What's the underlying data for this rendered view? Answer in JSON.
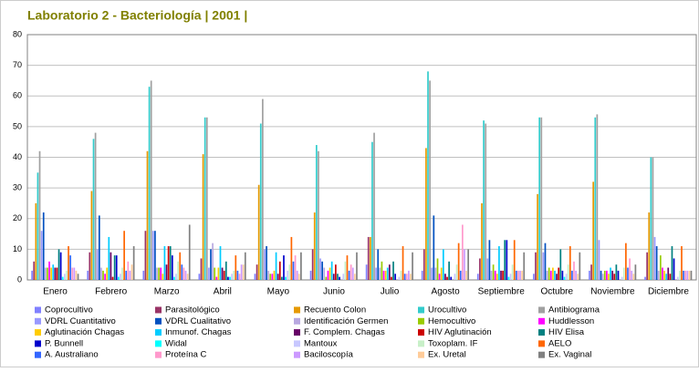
{
  "chart_data": {
    "type": "bar",
    "title": "Laboratorio 2 - Bacteriología | 2001 |",
    "categories": [
      "Enero",
      "Febrero",
      "Marzo",
      "Abril",
      "Mayo",
      "Junio",
      "Julio",
      "Agosto",
      "Septiembre",
      "Octubre",
      "Noviembre",
      "Diciembre"
    ],
    "ylim": [
      0,
      80
    ],
    "yticks": [
      0,
      10,
      20,
      30,
      40,
      50,
      60,
      70,
      80
    ],
    "grid": true,
    "series": [
      {
        "name": "Coprocultivo",
        "color": "#8080ff",
        "values": [
          3,
          3,
          3,
          2,
          2,
          3,
          5,
          3,
          2,
          2,
          3,
          1
        ]
      },
      {
        "name": "Parasitológico",
        "color": "#993366",
        "values": [
          6,
          9,
          16,
          7,
          5,
          10,
          14,
          10,
          7,
          9,
          5,
          9
        ]
      },
      {
        "name": "Recuento Colon",
        "color": "#e69900",
        "values": [
          25,
          29,
          42,
          41,
          31,
          22,
          14,
          43,
          25,
          28,
          32,
          22
        ]
      },
      {
        "name": "Urocultivo",
        "color": "#33cccc",
        "values": [
          35,
          46,
          63,
          53,
          51,
          44,
          45,
          68,
          52,
          53,
          53,
          40
        ]
      },
      {
        "name": "Antibiograma",
        "color": "#a0a0a0",
        "values": [
          42,
          48,
          65,
          53,
          59,
          42,
          48,
          65,
          51,
          53,
          54,
          40
        ]
      },
      {
        "name": "VDRL Cuantitativo",
        "color": "#9999ff",
        "values": [
          16,
          10,
          16,
          4,
          10,
          7,
          4,
          4,
          7,
          9,
          13,
          14
        ]
      },
      {
        "name": "VDRL Cualitativo",
        "color": "#0050c0",
        "values": [
          22,
          21,
          16,
          10,
          11,
          6,
          10,
          21,
          13,
          12,
          3,
          11
        ]
      },
      {
        "name": "Identificación Germen",
        "color": "#b8a8e0",
        "values": [
          4,
          4,
          4,
          12,
          3,
          4,
          4,
          4,
          3,
          3,
          2,
          3
        ]
      },
      {
        "name": "Hemocultivo",
        "color": "#99cc00",
        "values": [
          4,
          3,
          4,
          4,
          2,
          1,
          6,
          7,
          5,
          4,
          3,
          8
        ]
      },
      {
        "name": "Huddlesson",
        "color": "#ff00ff",
        "values": [
          6,
          2,
          4,
          1,
          2,
          3,
          3,
          2,
          3,
          3,
          3,
          4
        ]
      },
      {
        "name": "Aglutinación Chagas",
        "color": "#ffcc00",
        "values": [
          4,
          4,
          2,
          4,
          3,
          4,
          3,
          4,
          2,
          4,
          2,
          3
        ]
      },
      {
        "name": "Inmunof. Chagas",
        "color": "#00ccff",
        "values": [
          5,
          14,
          11,
          11,
          9,
          6,
          4,
          10,
          11,
          3,
          4,
          2
        ]
      },
      {
        "name": "F. Complem. Chagas",
        "color": "#660066",
        "values": [
          4,
          9,
          5,
          4,
          2,
          2,
          5,
          2,
          3,
          2,
          3,
          4
        ]
      },
      {
        "name": "HIV Aglutinación",
        "color": "#cc0000",
        "values": [
          4,
          1,
          11,
          3,
          6,
          5,
          1,
          1,
          3,
          4,
          2,
          2
        ]
      },
      {
        "name": "HIV Elisa",
        "color": "#008080",
        "values": [
          10,
          8,
          11,
          6,
          1,
          2,
          6,
          6,
          13,
          10,
          5,
          11
        ]
      },
      {
        "name": "P. Bunnell",
        "color": "#0000cc",
        "values": [
          9,
          8,
          8,
          1,
          8,
          1,
          2,
          1,
          13,
          3,
          3,
          7
        ]
      },
      {
        "name": "Widal",
        "color": "#00ffff",
        "values": [
          1,
          1,
          1,
          1,
          1,
          0,
          0,
          0,
          1,
          1,
          0,
          0
        ]
      },
      {
        "name": "Mantoux",
        "color": "#c8c8ff",
        "values": [
          2,
          2,
          2,
          2,
          3,
          2,
          1,
          2,
          2,
          2,
          1,
          1
        ]
      },
      {
        "name": "Toxoplam. IF",
        "color": "#c8f0c8",
        "values": [
          3,
          4,
          6,
          3,
          5,
          6,
          3,
          5,
          5,
          5,
          4,
          3
        ]
      },
      {
        "name": "AELO",
        "color": "#ff6600",
        "values": [
          11,
          16,
          9,
          8,
          14,
          8,
          11,
          12,
          13,
          11,
          12,
          11
        ]
      },
      {
        "name": "A. Australiano",
        "color": "#3366ff",
        "values": [
          8,
          3,
          5,
          3,
          6,
          3,
          2,
          3,
          3,
          3,
          4,
          3
        ]
      },
      {
        "name": "Proteína C",
        "color": "#ff99cc",
        "values": [
          4,
          6,
          4,
          2,
          8,
          5,
          2,
          18,
          3,
          6,
          7,
          3
        ]
      },
      {
        "name": "Baciloscopía",
        "color": "#cc99ff",
        "values": [
          4,
          3,
          3,
          5,
          3,
          4,
          3,
          10,
          3,
          3,
          3,
          3
        ]
      },
      {
        "name": "Ex. Uretal",
        "color": "#ffcc99",
        "values": [
          3,
          5,
          2,
          5,
          2,
          2,
          2,
          3,
          3,
          2,
          2,
          3
        ]
      },
      {
        "name": "Ex. Vaginal",
        "color": "#808080",
        "values": [
          2,
          11,
          18,
          9,
          9,
          9,
          9,
          10,
          9,
          9,
          5,
          3
        ]
      }
    ]
  }
}
